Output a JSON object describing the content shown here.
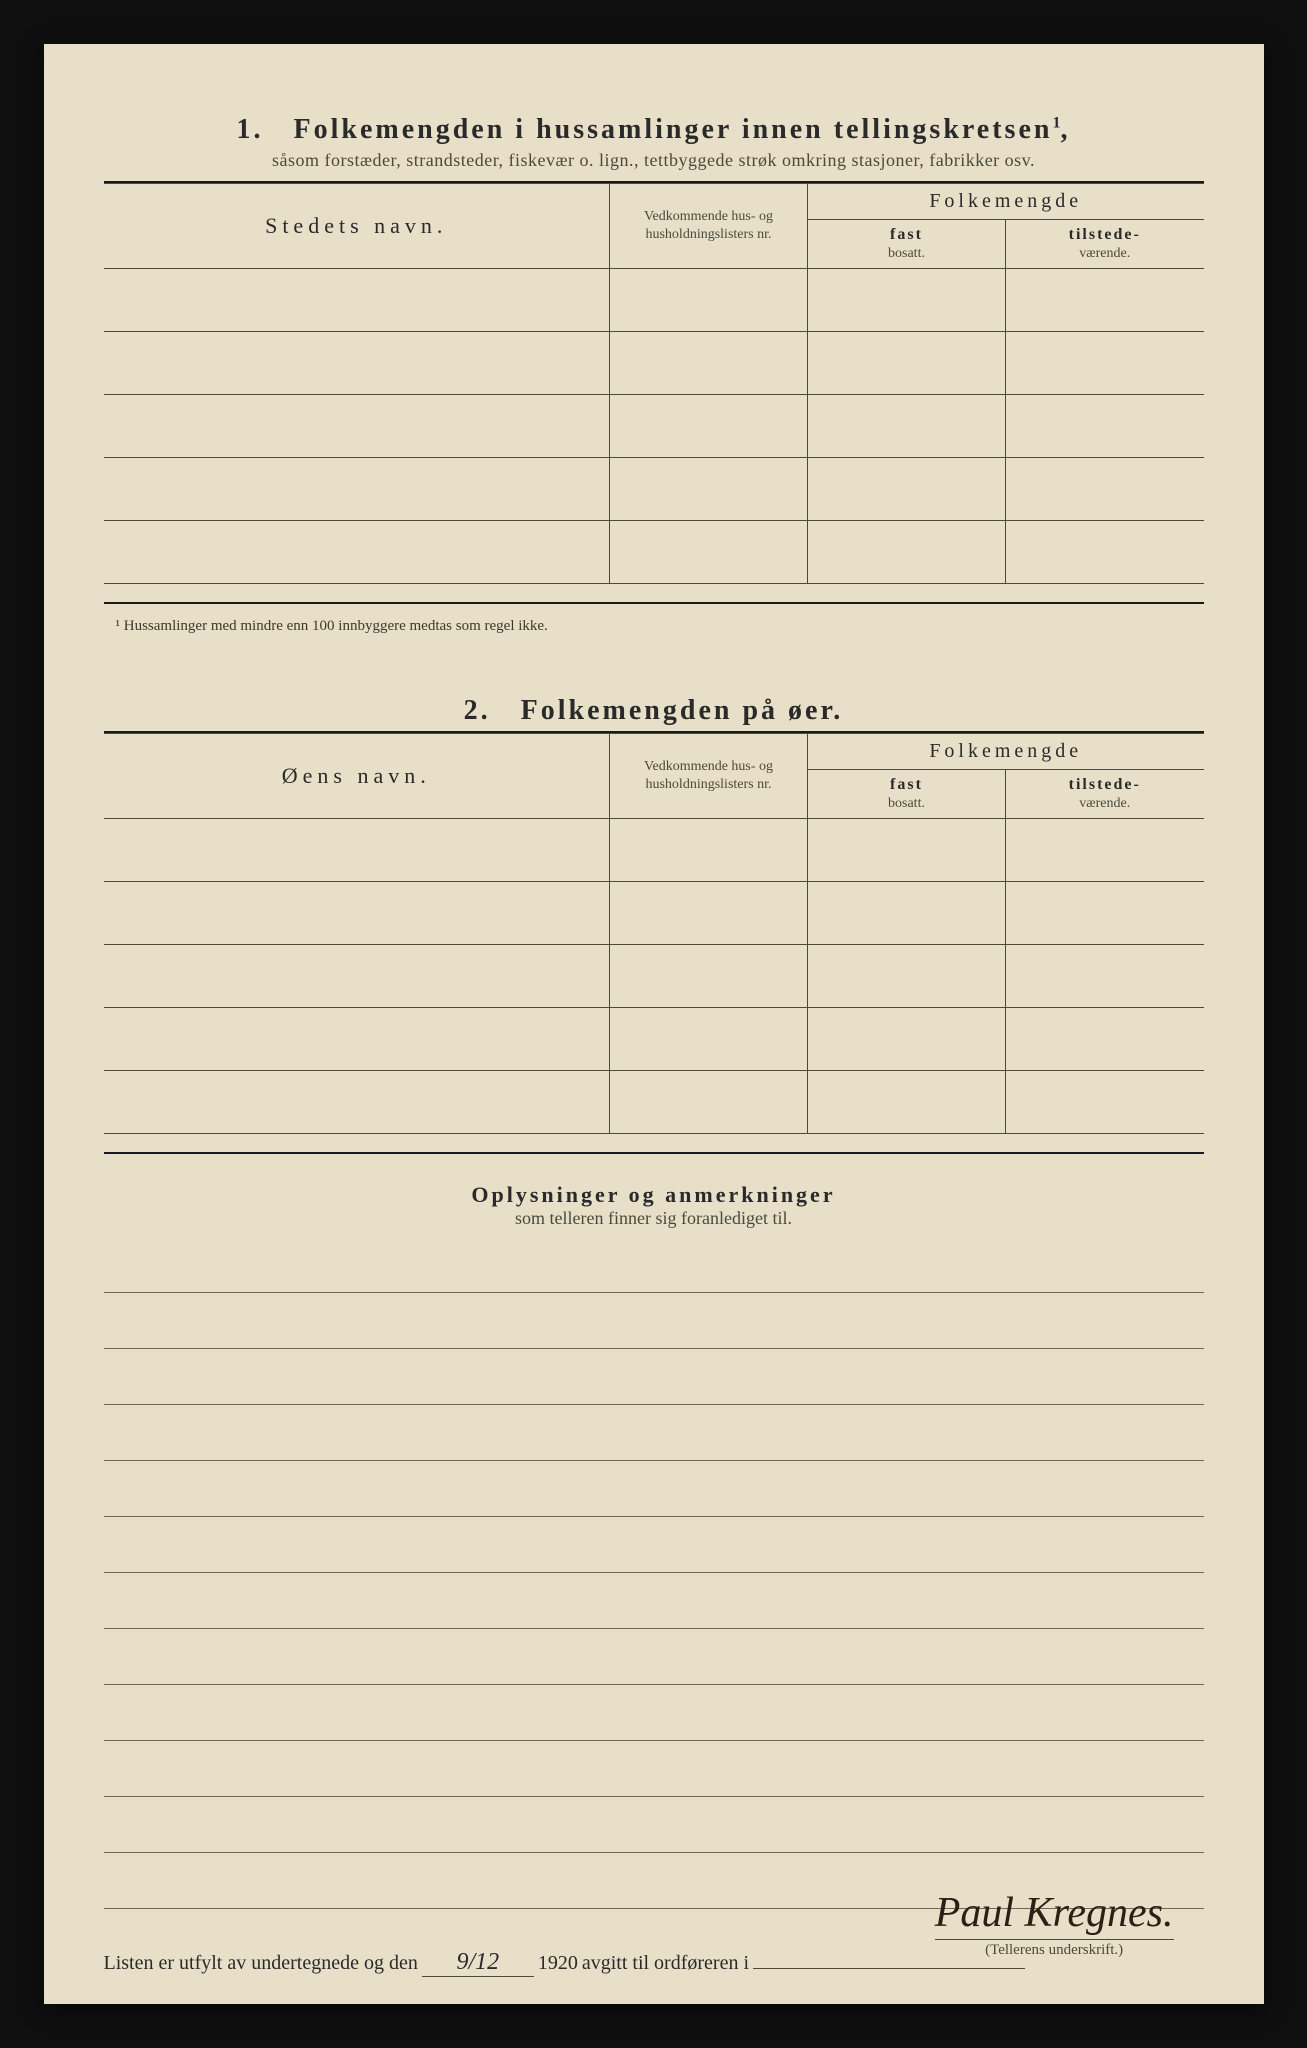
{
  "section1": {
    "number": "1.",
    "title": "Folkemengden i hussamlinger innen tellingskretsen",
    "superscript": "1",
    "subtitle": "såsom forstæder, strandsteder, fiskevær o. lign., tettbyggede strøk omkring stasjoner, fabrikker osv.",
    "col_name": "Stedets navn.",
    "col_hus": "Vedkommende hus- og husholdningslisters nr.",
    "col_folk": "Folkemengde",
    "col_fast_b": "fast",
    "col_fast_s": "bosatt.",
    "col_til_b": "tilstede-",
    "col_til_s": "værende.",
    "row_count": 5,
    "footnote": "¹ Hussamlinger med mindre enn 100 innbyggere medtas som regel ikke."
  },
  "section2": {
    "number": "2.",
    "title": "Folkemengden på øer.",
    "col_name": "Øens navn.",
    "col_hus": "Vedkommende hus- og husholdningslisters nr.",
    "col_folk": "Folkemengde",
    "col_fast_b": "fast",
    "col_fast_s": "bosatt.",
    "col_til_b": "tilstede-",
    "col_til_s": "værende.",
    "row_count": 5
  },
  "remarks": {
    "title": "Oplysninger og anmerkninger",
    "subtitle": "som telleren finner sig foranlediget til.",
    "line_count": 12
  },
  "footer": {
    "text_before": "Listen er utfylt av undertegnede og den",
    "date_value": "9/12",
    "year": "1920",
    "text_after": " avgitt til ordføreren i",
    "signature": "Paul Kregnes.",
    "signature_label": "(Tellerens underskrift.)"
  },
  "layout": {
    "col_widths": {
      "name": "46%",
      "hus": "18%",
      "fast": "18%",
      "til": "18%"
    },
    "colors": {
      "paper_bg": "#e8dfc8",
      "page_bg": "#0f0f0f",
      "text": "#2a2a2a",
      "muted": "#4a4a3a",
      "border": "#4a4a3a"
    },
    "fonts": {
      "title_size": 28,
      "subtitle_size": 18,
      "header_size": 22,
      "footnote_size": 15,
      "footer_size": 20,
      "signature_size": 42
    }
  }
}
